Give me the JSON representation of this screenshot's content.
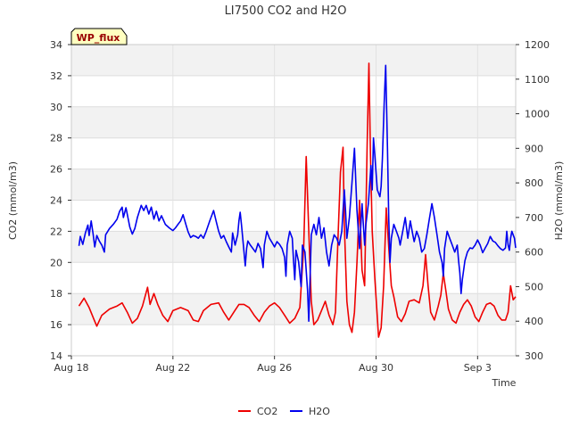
{
  "chart_data": {
    "type": "line",
    "title": "LI7500 CO2 and H2O",
    "xlabel": "Time",
    "ylabel_left": "CO2 (mmol/m3)",
    "ylabel_right": "H2O (mmol/m3)",
    "badge": "WP_flux",
    "x_unit": "days since Aug 18",
    "xlim": [
      0,
      17.5
    ],
    "ylim_left": [
      14,
      34
    ],
    "ylim_right": [
      300,
      1200
    ],
    "xticks": [
      {
        "x": 0,
        "label": "Aug 18"
      },
      {
        "x": 4,
        "label": "Aug 22"
      },
      {
        "x": 8,
        "label": "Aug 26"
      },
      {
        "x": 12,
        "label": "Aug 30"
      },
      {
        "x": 16,
        "label": "Sep 3"
      }
    ],
    "yticks_left": [
      14,
      16,
      18,
      20,
      22,
      24,
      26,
      28,
      30,
      32,
      34
    ],
    "yticks_right": [
      300,
      400,
      500,
      600,
      700,
      800,
      900,
      1000,
      1100,
      1200
    ],
    "series": [
      {
        "name": "CO2",
        "axis": "left",
        "color": "#ee0000",
        "points": [
          [
            0.3,
            17.2
          ],
          [
            0.5,
            17.7
          ],
          [
            0.7,
            17.1
          ],
          [
            0.9,
            16.3
          ],
          [
            1.0,
            15.9
          ],
          [
            1.2,
            16.6
          ],
          [
            1.5,
            17.0
          ],
          [
            1.8,
            17.2
          ],
          [
            2.0,
            17.4
          ],
          [
            2.2,
            16.8
          ],
          [
            2.4,
            16.1
          ],
          [
            2.6,
            16.4
          ],
          [
            2.8,
            17.2
          ],
          [
            3.0,
            18.4
          ],
          [
            3.1,
            17.3
          ],
          [
            3.25,
            18.0
          ],
          [
            3.4,
            17.3
          ],
          [
            3.6,
            16.6
          ],
          [
            3.8,
            16.2
          ],
          [
            4.0,
            16.9
          ],
          [
            4.3,
            17.1
          ],
          [
            4.6,
            16.9
          ],
          [
            4.8,
            16.3
          ],
          [
            5.0,
            16.2
          ],
          [
            5.2,
            16.9
          ],
          [
            5.5,
            17.3
          ],
          [
            5.8,
            17.4
          ],
          [
            6.0,
            16.8
          ],
          [
            6.2,
            16.3
          ],
          [
            6.4,
            16.8
          ],
          [
            6.6,
            17.3
          ],
          [
            6.8,
            17.3
          ],
          [
            7.0,
            17.1
          ],
          [
            7.2,
            16.6
          ],
          [
            7.4,
            16.2
          ],
          [
            7.6,
            16.8
          ],
          [
            7.8,
            17.2
          ],
          [
            8.0,
            17.4
          ],
          [
            8.2,
            17.1
          ],
          [
            8.4,
            16.6
          ],
          [
            8.6,
            16.1
          ],
          [
            8.8,
            16.4
          ],
          [
            9.0,
            17.1
          ],
          [
            9.15,
            21.0
          ],
          [
            9.25,
            26.8
          ],
          [
            9.35,
            22.0
          ],
          [
            9.45,
            17.5
          ],
          [
            9.55,
            16.0
          ],
          [
            9.7,
            16.3
          ],
          [
            9.85,
            16.9
          ],
          [
            10.0,
            17.5
          ],
          [
            10.15,
            16.6
          ],
          [
            10.3,
            16.0
          ],
          [
            10.4,
            16.8
          ],
          [
            10.5,
            21.5
          ],
          [
            10.6,
            25.8
          ],
          [
            10.7,
            27.4
          ],
          [
            10.75,
            22.5
          ],
          [
            10.85,
            17.5
          ],
          [
            10.95,
            16.0
          ],
          [
            11.05,
            15.5
          ],
          [
            11.15,
            16.8
          ],
          [
            11.25,
            20.0
          ],
          [
            11.35,
            24.0
          ],
          [
            11.45,
            19.5
          ],
          [
            11.55,
            18.5
          ],
          [
            11.65,
            27.5
          ],
          [
            11.72,
            32.8
          ],
          [
            11.78,
            27.0
          ],
          [
            11.85,
            22.0
          ],
          [
            11.95,
            19.0
          ],
          [
            12.05,
            16.5
          ],
          [
            12.1,
            15.2
          ],
          [
            12.2,
            15.8
          ],
          [
            12.3,
            18.5
          ],
          [
            12.4,
            23.5
          ],
          [
            12.5,
            21.0
          ],
          [
            12.6,
            18.5
          ],
          [
            12.7,
            17.8
          ],
          [
            12.85,
            16.5
          ],
          [
            13.0,
            16.2
          ],
          [
            13.15,
            16.7
          ],
          [
            13.3,
            17.5
          ],
          [
            13.5,
            17.6
          ],
          [
            13.7,
            17.4
          ],
          [
            13.85,
            18.5
          ],
          [
            13.95,
            20.5
          ],
          [
            14.05,
            18.5
          ],
          [
            14.15,
            16.8
          ],
          [
            14.3,
            16.3
          ],
          [
            14.45,
            17.2
          ],
          [
            14.55,
            17.9
          ],
          [
            14.65,
            19.3
          ],
          [
            14.75,
            18.2
          ],
          [
            14.85,
            17.0
          ],
          [
            15.0,
            16.3
          ],
          [
            15.15,
            16.1
          ],
          [
            15.3,
            16.8
          ],
          [
            15.45,
            17.3
          ],
          [
            15.6,
            17.6
          ],
          [
            15.75,
            17.2
          ],
          [
            15.9,
            16.5
          ],
          [
            16.05,
            16.2
          ],
          [
            16.2,
            16.8
          ],
          [
            16.35,
            17.3
          ],
          [
            16.5,
            17.4
          ],
          [
            16.65,
            17.2
          ],
          [
            16.8,
            16.6
          ],
          [
            16.95,
            16.3
          ],
          [
            17.1,
            16.3
          ],
          [
            17.2,
            16.8
          ],
          [
            17.3,
            18.5
          ],
          [
            17.4,
            17.6
          ],
          [
            17.5,
            17.8
          ]
        ]
      },
      {
        "name": "H2O",
        "axis": "right",
        "color": "#0000ee",
        "points": [
          [
            0.3,
            618
          ],
          [
            0.35,
            645
          ],
          [
            0.45,
            622
          ],
          [
            0.55,
            655
          ],
          [
            0.65,
            678
          ],
          [
            0.7,
            648
          ],
          [
            0.78,
            690
          ],
          [
            0.85,
            655
          ],
          [
            0.92,
            615
          ],
          [
            1.0,
            648
          ],
          [
            1.1,
            632
          ],
          [
            1.2,
            620
          ],
          [
            1.3,
            600
          ],
          [
            1.35,
            650
          ],
          [
            1.5,
            668
          ],
          [
            1.65,
            680
          ],
          [
            1.8,
            695
          ],
          [
            1.9,
            718
          ],
          [
            2.0,
            730
          ],
          [
            2.05,
            700
          ],
          [
            2.15,
            728
          ],
          [
            2.2,
            710
          ],
          [
            2.3,
            672
          ],
          [
            2.4,
            652
          ],
          [
            2.5,
            668
          ],
          [
            2.6,
            700
          ],
          [
            2.75,
            735
          ],
          [
            2.85,
            720
          ],
          [
            2.95,
            735
          ],
          [
            3.05,
            710
          ],
          [
            3.15,
            730
          ],
          [
            3.25,
            695
          ],
          [
            3.35,
            718
          ],
          [
            3.45,
            690
          ],
          [
            3.55,
            705
          ],
          [
            3.7,
            680
          ],
          [
            3.85,
            670
          ],
          [
            4.0,
            662
          ],
          [
            4.1,
            670
          ],
          [
            4.2,
            680
          ],
          [
            4.3,
            690
          ],
          [
            4.4,
            708
          ],
          [
            4.5,
            682
          ],
          [
            4.6,
            658
          ],
          [
            4.7,
            642
          ],
          [
            4.8,
            648
          ],
          [
            4.9,
            645
          ],
          [
            5.0,
            640
          ],
          [
            5.1,
            650
          ],
          [
            5.2,
            640
          ],
          [
            5.3,
            658
          ],
          [
            5.45,
            690
          ],
          [
            5.6,
            720
          ],
          [
            5.7,
            690
          ],
          [
            5.8,
            660
          ],
          [
            5.9,
            640
          ],
          [
            6.0,
            648
          ],
          [
            6.1,
            630
          ],
          [
            6.2,
            615
          ],
          [
            6.3,
            600
          ],
          [
            6.35,
            655
          ],
          [
            6.45,
            620
          ],
          [
            6.55,
            650
          ],
          [
            6.6,
            690
          ],
          [
            6.65,
            715
          ],
          [
            6.7,
            678
          ],
          [
            6.8,
            600
          ],
          [
            6.85,
            560
          ],
          [
            6.9,
            610
          ],
          [
            6.95,
            632
          ],
          [
            7.05,
            620
          ],
          [
            7.15,
            610
          ],
          [
            7.25,
            600
          ],
          [
            7.35,
            625
          ],
          [
            7.45,
            610
          ],
          [
            7.5,
            585
          ],
          [
            7.55,
            555
          ],
          [
            7.6,
            620
          ],
          [
            7.7,
            660
          ],
          [
            7.8,
            640
          ],
          [
            7.9,
            628
          ],
          [
            8.0,
            615
          ],
          [
            8.1,
            630
          ],
          [
            8.2,
            622
          ],
          [
            8.3,
            610
          ],
          [
            8.4,
            585
          ],
          [
            8.45,
            530
          ],
          [
            8.5,
            620
          ],
          [
            8.6,
            660
          ],
          [
            8.7,
            640
          ],
          [
            8.75,
            575
          ],
          [
            8.8,
            520
          ],
          [
            8.85,
            605
          ],
          [
            8.95,
            572
          ],
          [
            9.05,
            500
          ],
          [
            9.1,
            620
          ],
          [
            9.2,
            600
          ],
          [
            9.3,
            490
          ],
          [
            9.35,
            400
          ],
          [
            9.4,
            520
          ],
          [
            9.45,
            650
          ],
          [
            9.55,
            680
          ],
          [
            9.65,
            650
          ],
          [
            9.75,
            700
          ],
          [
            9.85,
            640
          ],
          [
            9.95,
            670
          ],
          [
            10.05,
            600
          ],
          [
            10.15,
            560
          ],
          [
            10.25,
            620
          ],
          [
            10.35,
            650
          ],
          [
            10.45,
            640
          ],
          [
            10.55,
            620
          ],
          [
            10.65,
            660
          ],
          [
            10.75,
            780
          ],
          [
            10.8,
            720
          ],
          [
            10.85,
            640
          ],
          [
            10.95,
            700
          ],
          [
            11.05,
            800
          ],
          [
            11.15,
            900
          ],
          [
            11.25,
            720
          ],
          [
            11.35,
            610
          ],
          [
            11.45,
            740
          ],
          [
            11.55,
            620
          ],
          [
            11.6,
            680
          ],
          [
            11.7,
            740
          ],
          [
            11.8,
            850
          ],
          [
            11.85,
            780
          ],
          [
            11.9,
            930
          ],
          [
            11.95,
            880
          ],
          [
            12.05,
            780
          ],
          [
            12.15,
            760
          ],
          [
            12.2,
            790
          ],
          [
            12.25,
            870
          ],
          [
            12.32,
            1030
          ],
          [
            12.38,
            1140
          ],
          [
            12.45,
            900
          ],
          [
            12.5,
            700
          ],
          [
            12.55,
            570
          ],
          [
            12.6,
            640
          ],
          [
            12.7,
            680
          ],
          [
            12.8,
            660
          ],
          [
            12.9,
            640
          ],
          [
            12.95,
            620
          ],
          [
            13.05,
            660
          ],
          [
            13.15,
            700
          ],
          [
            13.25,
            640
          ],
          [
            13.35,
            690
          ],
          [
            13.45,
            650
          ],
          [
            13.5,
            630
          ],
          [
            13.6,
            660
          ],
          [
            13.7,
            640
          ],
          [
            13.8,
            600
          ],
          [
            13.9,
            610
          ],
          [
            14.0,
            650
          ],
          [
            14.1,
            695
          ],
          [
            14.2,
            740
          ],
          [
            14.3,
            700
          ],
          [
            14.4,
            650
          ],
          [
            14.5,
            600
          ],
          [
            14.6,
            570
          ],
          [
            14.65,
            530
          ],
          [
            14.7,
            610
          ],
          [
            14.8,
            660
          ],
          [
            14.9,
            640
          ],
          [
            15.0,
            620
          ],
          [
            15.1,
            600
          ],
          [
            15.2,
            620
          ],
          [
            15.25,
            575
          ],
          [
            15.3,
            540
          ],
          [
            15.35,
            480
          ],
          [
            15.4,
            520
          ],
          [
            15.5,
            575
          ],
          [
            15.6,
            600
          ],
          [
            15.7,
            612
          ],
          [
            15.8,
            610
          ],
          [
            15.9,
            620
          ],
          [
            16.0,
            635
          ],
          [
            16.1,
            620
          ],
          [
            16.2,
            598
          ],
          [
            16.3,
            612
          ],
          [
            16.4,
            625
          ],
          [
            16.5,
            645
          ],
          [
            16.6,
            632
          ],
          [
            16.7,
            628
          ],
          [
            16.8,
            618
          ],
          [
            16.9,
            610
          ],
          [
            17.0,
            605
          ],
          [
            17.1,
            612
          ],
          [
            17.15,
            660
          ],
          [
            17.2,
            620
          ],
          [
            17.25,
            605
          ],
          [
            17.3,
            640
          ],
          [
            17.35,
            660
          ],
          [
            17.45,
            640
          ],
          [
            17.5,
            612
          ]
        ]
      }
    ]
  }
}
